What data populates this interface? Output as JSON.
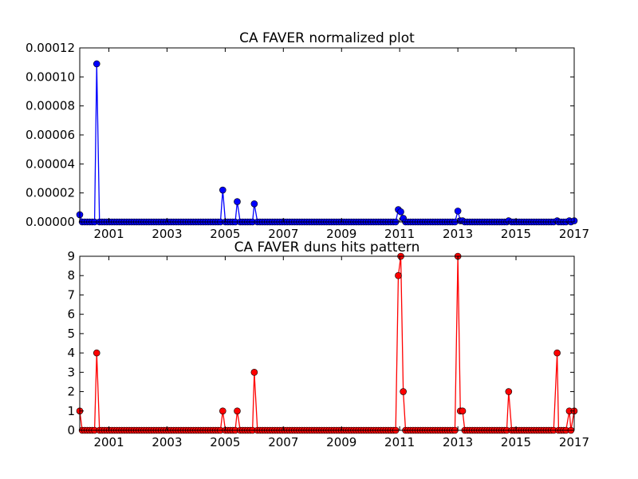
{
  "chart_data": [
    {
      "type": "line",
      "title": "CA FAVER normalized plot",
      "xlabel": "",
      "ylabel": "",
      "x_axis_type": "date",
      "xlim": [
        "2000-01-01",
        "2017-01-01"
      ],
      "ylim": [
        0,
        0.00012
      ],
      "x_ticks": [
        "2001",
        "2003",
        "2005",
        "2007",
        "2009",
        "2011",
        "2013",
        "2015",
        "2017"
      ],
      "y_ticks": [
        "0.00000",
        "0.00002",
        "0.00004",
        "0.00006",
        "0.00008",
        "0.00010",
        "0.00012"
      ],
      "grid": false,
      "legend": "none",
      "color": "#0000ff",
      "baseline": 0,
      "series": [
        {
          "x": [
            "2000-01-01",
            "2000-08-01",
            "2004-12-01",
            "2005-06-01",
            "2006-01-01",
            "2010-12-15",
            "2011-01-15",
            "2011-02-15",
            "2013-01-01",
            "2013-02-01",
            "2013-03-01",
            "2014-10-01",
            "2016-06-01",
            "2016-11-01",
            "2017-01-01"
          ],
          "values": [
            5e-06,
            0.000109,
            2.2e-05,
            1.4e-05,
            1.25e-05,
            8.5e-06,
            7e-06,
            2.5e-06,
            7.5e-06,
            8e-07,
            8e-07,
            8e-07,
            8e-07,
            8e-07,
            8e-07
          ]
        }
      ]
    },
    {
      "type": "line",
      "title": "CA FAVER duns hits pattern",
      "xlabel": "",
      "ylabel": "",
      "x_axis_type": "date",
      "xlim": [
        "2000-01-01",
        "2017-01-01"
      ],
      "ylim": [
        0,
        9
      ],
      "x_ticks": [
        "2001",
        "2003",
        "2005",
        "2007",
        "2009",
        "2011",
        "2013",
        "2015",
        "2017"
      ],
      "y_ticks": [
        "0",
        "1",
        "2",
        "3",
        "4",
        "5",
        "6",
        "7",
        "8",
        "9"
      ],
      "grid": false,
      "legend": "none",
      "color": "#ff0000",
      "baseline": 0,
      "series": [
        {
          "x": [
            "2000-01-01",
            "2000-08-01",
            "2004-12-01",
            "2005-06-01",
            "2006-01-01",
            "2010-12-15",
            "2011-01-15",
            "2011-02-15",
            "2013-01-01",
            "2013-02-01",
            "2013-03-01",
            "2014-10-01",
            "2016-06-01",
            "2016-11-01",
            "2017-01-01"
          ],
          "values": [
            1,
            4,
            1,
            1,
            3,
            8,
            9,
            2,
            9,
            1,
            1,
            2,
            4,
            1,
            1
          ]
        }
      ]
    }
  ]
}
